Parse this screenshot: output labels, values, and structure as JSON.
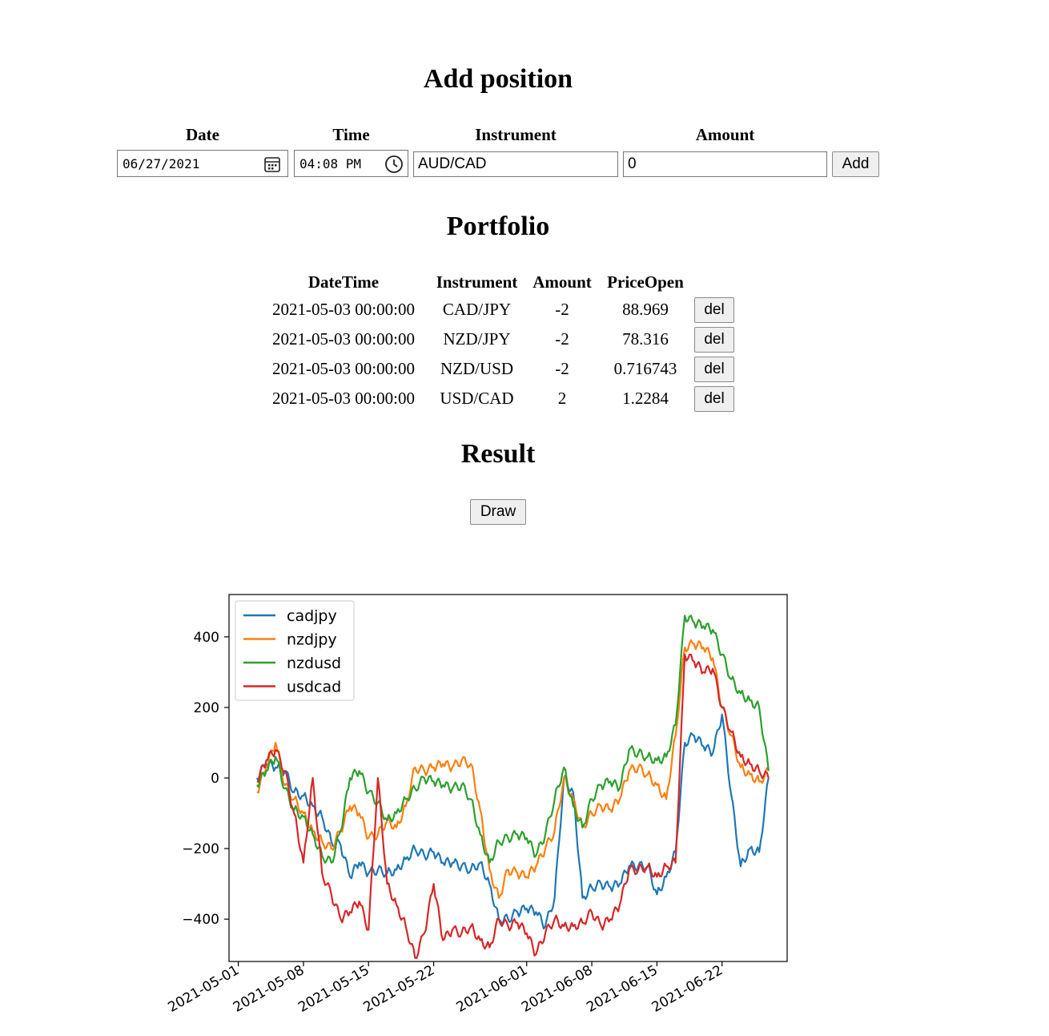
{
  "add_position": {
    "title": "Add position",
    "labels": {
      "date": "Date",
      "time": "Time",
      "instrument": "Instrument",
      "amount": "Amount"
    },
    "date_value": "06/27/2021",
    "time_value": "04:08 PM",
    "instrument_value": "AUD/CAD",
    "amount_value": "0",
    "add_label": "Add",
    "icons": {
      "date": "calendar-icon",
      "time": "clock-icon"
    }
  },
  "portfolio": {
    "title": "Portfolio",
    "columns": [
      "DateTime",
      "Instrument",
      "Amount",
      "PriceOpen"
    ],
    "rows": [
      {
        "datetime": "2021-05-03 00:00:00",
        "instrument": "CAD/JPY",
        "amount": "-2",
        "price_open": "88.969",
        "action": "del"
      },
      {
        "datetime": "2021-05-03 00:00:00",
        "instrument": "NZD/JPY",
        "amount": "-2",
        "price_open": "78.316",
        "action": "del"
      },
      {
        "datetime": "2021-05-03 00:00:00",
        "instrument": "NZD/USD",
        "amount": "-2",
        "price_open": "0.716743",
        "action": "del"
      },
      {
        "datetime": "2021-05-03 00:00:00",
        "instrument": "USD/CAD",
        "amount": "2",
        "price_open": "1.2284",
        "action": "del"
      }
    ]
  },
  "result": {
    "title": "Result",
    "draw_label": "Draw"
  },
  "chart_data": {
    "type": "line",
    "title": "",
    "xlabel": "",
    "ylabel": "",
    "x_ticks": [
      "2021-05-01",
      "2021-05-08",
      "2021-05-15",
      "2021-05-22",
      "2021-06-01",
      "2021-06-08",
      "2021-06-15",
      "2021-06-22"
    ],
    "y_ticks": [
      400,
      200,
      0,
      -200,
      -400
    ],
    "xlim": [
      "2021-04-30",
      "2021-06-29"
    ],
    "ylim": [
      -520,
      520
    ],
    "legend_position": "top-left",
    "grid": false,
    "series": [
      {
        "name": "cadjpy",
        "color": "#1f77b4",
        "points": [
          [
            "2021-05-03",
            0
          ],
          [
            "2021-05-04",
            40
          ],
          [
            "2021-05-05",
            30
          ],
          [
            "2021-05-06",
            20
          ],
          [
            "2021-05-07",
            -40
          ],
          [
            "2021-05-08",
            -50
          ],
          [
            "2021-05-09",
            -80
          ],
          [
            "2021-05-10",
            -110
          ],
          [
            "2021-05-11",
            -180
          ],
          [
            "2021-05-12",
            -190
          ],
          [
            "2021-05-13",
            -280
          ],
          [
            "2021-05-14",
            -240
          ],
          [
            "2021-05-15",
            -270
          ],
          [
            "2021-05-16",
            -260
          ],
          [
            "2021-05-17",
            -270
          ],
          [
            "2021-05-18",
            -260
          ],
          [
            "2021-05-19",
            -230
          ],
          [
            "2021-05-20",
            -200
          ],
          [
            "2021-05-21",
            -220
          ],
          [
            "2021-05-22",
            -210
          ],
          [
            "2021-05-23",
            -240
          ],
          [
            "2021-05-24",
            -240
          ],
          [
            "2021-05-25",
            -250
          ],
          [
            "2021-05-26",
            -260
          ],
          [
            "2021-05-27",
            -240
          ],
          [
            "2021-05-28",
            -300
          ],
          [
            "2021-05-29",
            -400
          ],
          [
            "2021-05-30",
            -400
          ],
          [
            "2021-05-31",
            -380
          ],
          [
            "2021-06-01",
            -370
          ],
          [
            "2021-06-02",
            -380
          ],
          [
            "2021-06-03",
            -420
          ],
          [
            "2021-06-04",
            -340
          ],
          [
            "2021-06-05",
            0
          ],
          [
            "2021-06-06",
            -40
          ],
          [
            "2021-06-07",
            -340
          ],
          [
            "2021-06-08",
            -310
          ],
          [
            "2021-06-09",
            -300
          ],
          [
            "2021-06-10",
            -310
          ],
          [
            "2021-06-11",
            -300
          ],
          [
            "2021-06-12",
            -250
          ],
          [
            "2021-06-13",
            -250
          ],
          [
            "2021-06-14",
            -250
          ],
          [
            "2021-06-15",
            -330
          ],
          [
            "2021-06-16",
            -280
          ],
          [
            "2021-06-17",
            -210
          ],
          [
            "2021-06-18",
            100
          ],
          [
            "2021-06-19",
            120
          ],
          [
            "2021-06-20",
            90
          ],
          [
            "2021-06-21",
            70
          ],
          [
            "2021-06-22",
            180
          ],
          [
            "2021-06-23",
            -50
          ],
          [
            "2021-06-24",
            -250
          ],
          [
            "2021-06-25",
            -200
          ],
          [
            "2021-06-26",
            -210
          ],
          [
            "2021-06-27",
            0
          ]
        ]
      },
      {
        "name": "nzdjpy",
        "color": "#ff7f0e",
        "points": [
          [
            "2021-05-03",
            -40
          ],
          [
            "2021-05-04",
            30
          ],
          [
            "2021-05-05",
            100
          ],
          [
            "2021-05-06",
            -20
          ],
          [
            "2021-05-07",
            -60
          ],
          [
            "2021-05-08",
            -100
          ],
          [
            "2021-05-09",
            -150
          ],
          [
            "2021-05-10",
            -180
          ],
          [
            "2021-05-11",
            -200
          ],
          [
            "2021-05-12",
            -150
          ],
          [
            "2021-05-13",
            -80
          ],
          [
            "2021-05-14",
            -100
          ],
          [
            "2021-05-15",
            -170
          ],
          [
            "2021-05-16",
            -160
          ],
          [
            "2021-05-17",
            -120
          ],
          [
            "2021-05-18",
            -140
          ],
          [
            "2021-05-19",
            -80
          ],
          [
            "2021-05-20",
            30
          ],
          [
            "2021-05-21",
            20
          ],
          [
            "2021-05-22",
            30
          ],
          [
            "2021-05-23",
            40
          ],
          [
            "2021-05-24",
            30
          ],
          [
            "2021-05-25",
            50
          ],
          [
            "2021-05-26",
            40
          ],
          [
            "2021-05-27",
            -90
          ],
          [
            "2021-05-28",
            -260
          ],
          [
            "2021-05-29",
            -340
          ],
          [
            "2021-05-30",
            -260
          ],
          [
            "2021-05-31",
            -270
          ],
          [
            "2021-06-01",
            -280
          ],
          [
            "2021-06-02",
            -250
          ],
          [
            "2021-06-03",
            -200
          ],
          [
            "2021-06-04",
            -150
          ],
          [
            "2021-06-05",
            0
          ],
          [
            "2021-06-06",
            -60
          ],
          [
            "2021-06-07",
            -140
          ],
          [
            "2021-06-08",
            -100
          ],
          [
            "2021-06-09",
            -80
          ],
          [
            "2021-06-10",
            -90
          ],
          [
            "2021-06-11",
            -60
          ],
          [
            "2021-06-12",
            20
          ],
          [
            "2021-06-13",
            30
          ],
          [
            "2021-06-14",
            10
          ],
          [
            "2021-06-15",
            -20
          ],
          [
            "2021-06-16",
            -60
          ],
          [
            "2021-06-17",
            120
          ],
          [
            "2021-06-18",
            370
          ],
          [
            "2021-06-19",
            380
          ],
          [
            "2021-06-20",
            370
          ],
          [
            "2021-06-21",
            340
          ],
          [
            "2021-06-22",
            200
          ],
          [
            "2021-06-23",
            120
          ],
          [
            "2021-06-24",
            30
          ],
          [
            "2021-06-25",
            10
          ],
          [
            "2021-06-26",
            -10
          ],
          [
            "2021-06-27",
            20
          ]
        ]
      },
      {
        "name": "nzdusd",
        "color": "#2ca02c",
        "points": [
          [
            "2021-05-03",
            -20
          ],
          [
            "2021-05-04",
            20
          ],
          [
            "2021-05-05",
            60
          ],
          [
            "2021-05-06",
            -30
          ],
          [
            "2021-05-07",
            -90
          ],
          [
            "2021-05-08",
            -110
          ],
          [
            "2021-05-09",
            -160
          ],
          [
            "2021-05-10",
            -220
          ],
          [
            "2021-05-11",
            -240
          ],
          [
            "2021-05-12",
            -150
          ],
          [
            "2021-05-13",
            0
          ],
          [
            "2021-05-14",
            20
          ],
          [
            "2021-05-15",
            -40
          ],
          [
            "2021-05-16",
            -70
          ],
          [
            "2021-05-17",
            -120
          ],
          [
            "2021-05-18",
            -100
          ],
          [
            "2021-05-19",
            -60
          ],
          [
            "2021-05-20",
            -30
          ],
          [
            "2021-05-21",
            0
          ],
          [
            "2021-05-22",
            -10
          ],
          [
            "2021-05-23",
            -20
          ],
          [
            "2021-05-24",
            -30
          ],
          [
            "2021-05-25",
            -20
          ],
          [
            "2021-05-26",
            -60
          ],
          [
            "2021-05-27",
            -160
          ],
          [
            "2021-05-28",
            -240
          ],
          [
            "2021-05-29",
            -180
          ],
          [
            "2021-05-30",
            -170
          ],
          [
            "2021-05-31",
            -160
          ],
          [
            "2021-06-01",
            -170
          ],
          [
            "2021-06-02",
            -220
          ],
          [
            "2021-06-03",
            -160
          ],
          [
            "2021-06-04",
            -60
          ],
          [
            "2021-06-05",
            30
          ],
          [
            "2021-06-06",
            -80
          ],
          [
            "2021-06-07",
            -140
          ],
          [
            "2021-06-08",
            -60
          ],
          [
            "2021-06-09",
            -20
          ],
          [
            "2021-06-10",
            -10
          ],
          [
            "2021-06-11",
            -30
          ],
          [
            "2021-06-12",
            80
          ],
          [
            "2021-06-13",
            70
          ],
          [
            "2021-06-14",
            60
          ],
          [
            "2021-06-15",
            50
          ],
          [
            "2021-06-16",
            60
          ],
          [
            "2021-06-17",
            150
          ],
          [
            "2021-06-18",
            460
          ],
          [
            "2021-06-19",
            440
          ],
          [
            "2021-06-20",
            430
          ],
          [
            "2021-06-21",
            420
          ],
          [
            "2021-06-22",
            350
          ],
          [
            "2021-06-23",
            280
          ],
          [
            "2021-06-24",
            240
          ],
          [
            "2021-06-25",
            220
          ],
          [
            "2021-06-26",
            200
          ],
          [
            "2021-06-27",
            20
          ]
        ]
      },
      {
        "name": "usdcad",
        "color": "#d62728",
        "points": [
          [
            "2021-05-03",
            -10
          ],
          [
            "2021-05-04",
            50
          ],
          [
            "2021-05-05",
            80
          ],
          [
            "2021-05-06",
            20
          ],
          [
            "2021-05-07",
            -100
          ],
          [
            "2021-05-08",
            -240
          ],
          [
            "2021-05-09",
            0
          ],
          [
            "2021-05-10",
            -270
          ],
          [
            "2021-05-11",
            -330
          ],
          [
            "2021-05-12",
            -400
          ],
          [
            "2021-05-13",
            -380
          ],
          [
            "2021-05-14",
            -350
          ],
          [
            "2021-05-15",
            -430
          ],
          [
            "2021-05-16",
            0
          ],
          [
            "2021-05-17",
            -300
          ],
          [
            "2021-05-18",
            -360
          ],
          [
            "2021-05-19",
            -420
          ],
          [
            "2021-05-20",
            -510
          ],
          [
            "2021-05-21",
            -440
          ],
          [
            "2021-05-22",
            -300
          ],
          [
            "2021-05-23",
            -460
          ],
          [
            "2021-05-24",
            -430
          ],
          [
            "2021-05-25",
            -440
          ],
          [
            "2021-05-26",
            -420
          ],
          [
            "2021-05-27",
            -460
          ],
          [
            "2021-05-28",
            -480
          ],
          [
            "2021-05-29",
            -400
          ],
          [
            "2021-05-30",
            -420
          ],
          [
            "2021-05-31",
            -410
          ],
          [
            "2021-06-01",
            -440
          ],
          [
            "2021-06-02",
            -500
          ],
          [
            "2021-06-03",
            -440
          ],
          [
            "2021-06-04",
            -400
          ],
          [
            "2021-06-05",
            -420
          ],
          [
            "2021-06-06",
            -420
          ],
          [
            "2021-06-07",
            -410
          ],
          [
            "2021-06-08",
            -380
          ],
          [
            "2021-06-09",
            -420
          ],
          [
            "2021-06-10",
            -400
          ],
          [
            "2021-06-11",
            -360
          ],
          [
            "2021-06-12",
            -260
          ],
          [
            "2021-06-13",
            -260
          ],
          [
            "2021-06-14",
            -250
          ],
          [
            "2021-06-15",
            -280
          ],
          [
            "2021-06-16",
            -250
          ],
          [
            "2021-06-17",
            -240
          ],
          [
            "2021-06-18",
            350
          ],
          [
            "2021-06-19",
            330
          ],
          [
            "2021-06-20",
            300
          ],
          [
            "2021-06-21",
            310
          ],
          [
            "2021-06-22",
            200
          ],
          [
            "2021-06-23",
            130
          ],
          [
            "2021-06-24",
            60
          ],
          [
            "2021-06-25",
            40
          ],
          [
            "2021-06-26",
            20
          ],
          [
            "2021-06-27",
            0
          ]
        ]
      }
    ]
  }
}
